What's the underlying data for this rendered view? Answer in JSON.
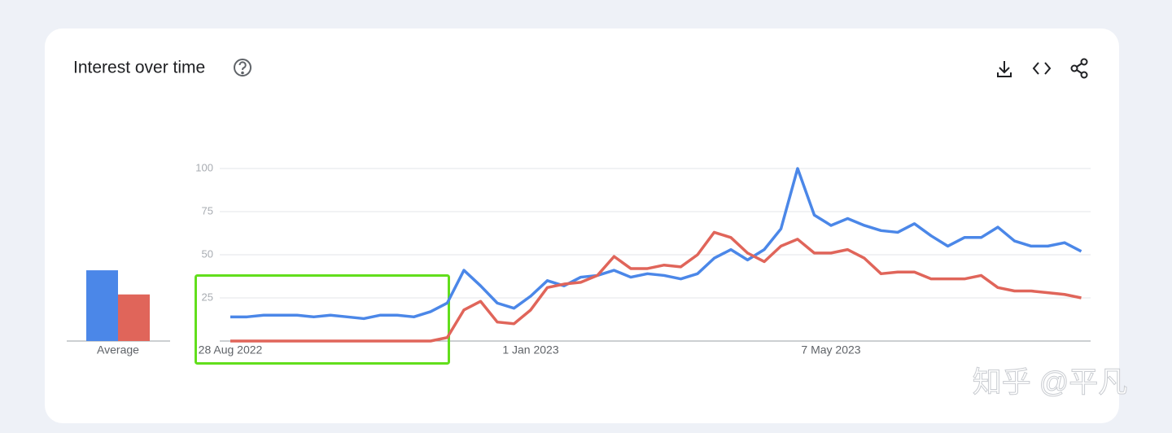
{
  "header": {
    "title": "Interest over time"
  },
  "chart_data": [
    {
      "type": "line",
      "categories": [
        "28 Aug 2022",
        null,
        null,
        null,
        null,
        null,
        null,
        null,
        null,
        null,
        null,
        null,
        null,
        null,
        null,
        null,
        null,
        null,
        "1 Jan 2023",
        null,
        null,
        null,
        null,
        null,
        null,
        null,
        null,
        null,
        null,
        null,
        null,
        null,
        null,
        null,
        null,
        null,
        "7 May 2023",
        null,
        null,
        null,
        null,
        null,
        null,
        null,
        null,
        null,
        null,
        null,
        null,
        null,
        null,
        null
      ],
      "series": [
        {
          "color": "#4b87e8",
          "values": [
            14,
            14,
            15,
            15,
            15,
            14,
            15,
            14,
            13,
            15,
            15,
            14,
            17,
            22,
            41,
            32,
            22,
            19,
            26,
            35,
            32,
            37,
            38,
            41,
            37,
            39,
            38,
            36,
            39,
            48,
            53,
            47,
            53,
            65,
            100,
            73,
            67,
            71,
            67,
            64,
            63,
            68,
            61,
            55,
            60,
            60,
            66,
            58,
            55,
            55,
            57,
            52
          ]
        },
        {
          "color": "#e0655a",
          "values": [
            0,
            0,
            0,
            0,
            0,
            0,
            0,
            0,
            0,
            0,
            0,
            0,
            0,
            2,
            18,
            23,
            11,
            10,
            18,
            31,
            33,
            34,
            38,
            49,
            42,
            42,
            44,
            43,
            50,
            63,
            60,
            51,
            46,
            55,
            59,
            51,
            51,
            53,
            48,
            39,
            40,
            40,
            36,
            36,
            36,
            38,
            31,
            29,
            29,
            28,
            27,
            25
          ]
        }
      ],
      "ylim": [
        0,
        100
      ],
      "yticks": [
        25,
        50,
        75,
        100
      ],
      "grid": true
    },
    {
      "type": "bar",
      "categories": [
        "Average"
      ],
      "series": [
        {
          "color": "#4b87e8",
          "values": [
            41
          ]
        },
        {
          "color": "#e0655a",
          "values": [
            27
          ]
        }
      ],
      "ylim": [
        0,
        100
      ]
    }
  ],
  "watermark": "知乎 @平凡"
}
